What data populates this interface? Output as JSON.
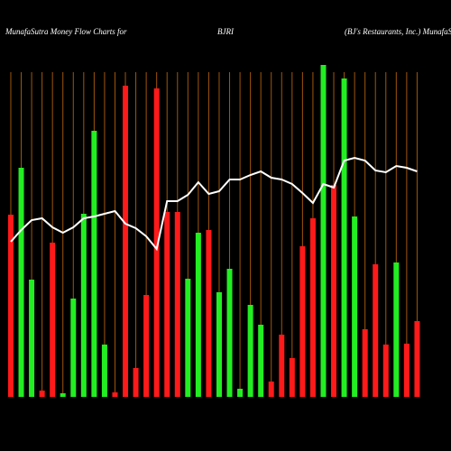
{
  "chart_data": {
    "type": "bar",
    "title": "MunafaSutra  Money Flow  Charts for",
    "subtitle": "BJRI",
    "annotation": "(BJ's Restaurants,  Inc.) MunafaSutra.com",
    "categories": [
      null,
      null,
      null,
      null,
      null,
      null,
      null,
      null,
      null,
      null,
      null,
      null,
      null,
      null,
      null,
      null,
      null,
      null,
      null,
      null,
      null,
      null,
      null,
      null,
      null,
      null,
      null,
      null,
      null,
      null,
      null,
      null,
      null,
      null,
      null,
      null,
      null,
      null,
      null,
      null
    ],
    "values": [
      202,
      254,
      130,
      7,
      171,
      4,
      109,
      203,
      295,
      58,
      5,
      345,
      32,
      113,
      342,
      205,
      205,
      131,
      182,
      185,
      116,
      142,
      9,
      102,
      80,
      17,
      69,
      43,
      167,
      198,
      368,
      235,
      353,
      200,
      75,
      147,
      58,
      149,
      59,
      84
    ],
    "colors": [
      "#ff1a1a",
      "#22ee22",
      "#22ee22",
      "#ff1a1a",
      "#ff1a1a",
      "#22ee22",
      "#22ee22",
      "#22ee22",
      "#22ee22",
      "#22ee22",
      "#ff1a1a",
      "#ff1a1a",
      "#ff1a1a",
      "#ff1a1a",
      "#ff1a1a",
      "#ff1a1a",
      "#ff1a1a",
      "#22ee22",
      "#22ee22",
      "#ff1a1a",
      "#22ee22",
      "#22ee22",
      "#22ee22",
      "#22ee22",
      "#22ee22",
      "#ff1a1a",
      "#ff1a1a",
      "#ff1a1a",
      "#ff1a1a",
      "#ff1a1a",
      "#22ee22",
      "#ff1a1a",
      "#22ee22",
      "#22ee22",
      "#ff1a1a",
      "#ff1a1a",
      "#ff1a1a",
      "#22ee22",
      "#ff1a1a",
      "#ff1a1a"
    ],
    "line_values": [
      172,
      185,
      196,
      198,
      188,
      182,
      188,
      198,
      200,
      203,
      206,
      192,
      187,
      178,
      164,
      217,
      217,
      224,
      238,
      225,
      228,
      241,
      241,
      246,
      250,
      243,
      241,
      236,
      226,
      215,
      236,
      232,
      262,
      265,
      262,
      251,
      249,
      256,
      254,
      250
    ],
    "line_color": "#ffffff",
    "grid_color": "#a0560c",
    "ylim": [
      0,
      370
    ],
    "grid": true
  }
}
